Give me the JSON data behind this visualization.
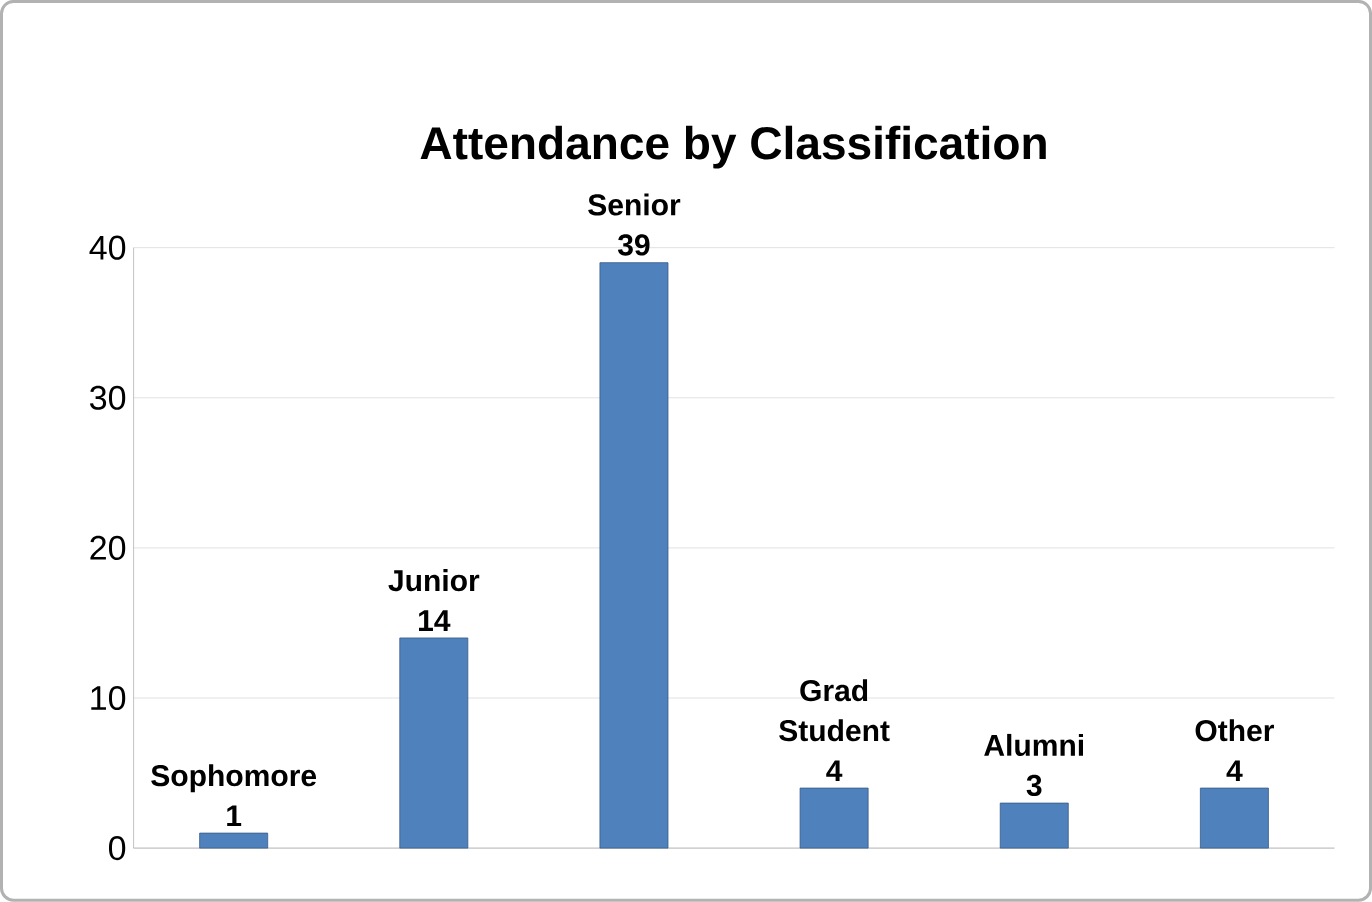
{
  "chart_data": {
    "type": "bar",
    "title": "Attendance by Classification",
    "categories": [
      "Sophomore",
      "Junior",
      "Senior",
      "Grad Student",
      "Alumni",
      "Other"
    ],
    "values": [
      1,
      14,
      39,
      4,
      3,
      4
    ],
    "color": "#4f81bd",
    "ylim": [
      0,
      40
    ],
    "yticks": [
      0,
      10,
      20,
      30,
      40
    ],
    "grid": "y",
    "data_labels": true
  }
}
